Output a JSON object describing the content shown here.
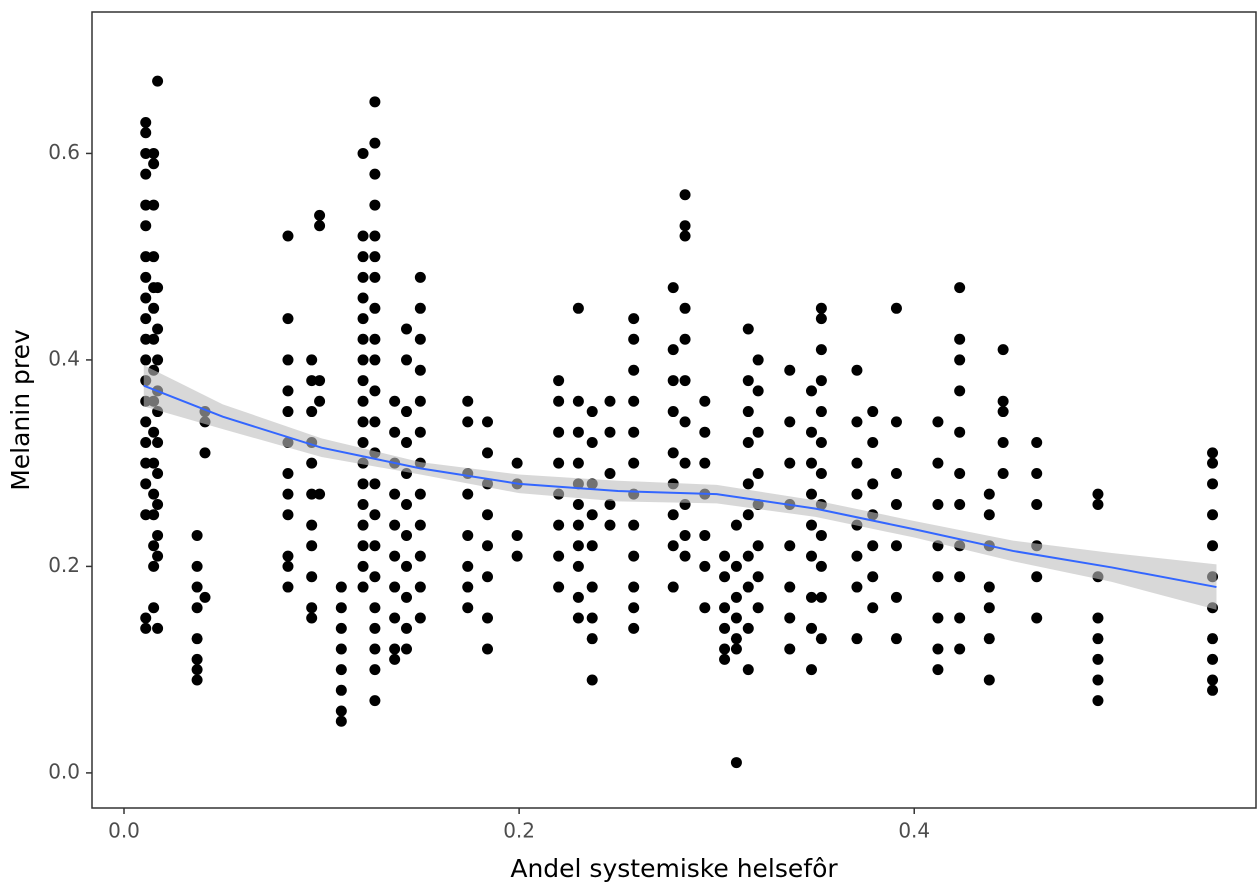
{
  "chart_data": {
    "type": "scatter",
    "x_label": "Andel systemiske helsefôr",
    "y_label": "Melanin prev",
    "xlim": [
      -0.0162,
      0.573
    ],
    "ylim": [
      -0.034,
      0.737
    ],
    "xticks": [
      {
        "value": 0,
        "label": "0.0"
      },
      0.2,
      0.4
    ],
    "yticks": [
      {
        "value": 0,
        "label": "0.0"
      },
      0.2,
      0.4,
      0.6
    ],
    "grid": false,
    "series": [
      {
        "color": "#000000",
        "x": [
          0.011,
          0.011,
          0.011,
          0.011,
          0.011,
          0.011,
          0.011,
          0.011,
          0.011,
          0.011,
          0.011,
          0.011,
          0.011,
          0.011,
          0.011,
          0.011,
          0.011,
          0.011,
          0.011,
          0.011,
          0.011,
          0.015,
          0.015,
          0.015,
          0.015,
          0.015,
          0.015,
          0.015,
          0.015,
          0.015,
          0.015,
          0.015,
          0.015,
          0.015,
          0.015,
          0.015,
          0.015,
          0.017,
          0.017,
          0.017,
          0.017,
          0.017,
          0.017,
          0.017,
          0.017,
          0.017,
          0.017,
          0.017,
          0.017,
          0.037,
          0.037,
          0.037,
          0.037,
          0.037,
          0.037,
          0.037,
          0.037,
          0.041,
          0.041,
          0.041,
          0.041,
          0.083,
          0.083,
          0.083,
          0.083,
          0.083,
          0.083,
          0.083,
          0.083,
          0.083,
          0.083,
          0.083,
          0.083,
          0.095,
          0.095,
          0.095,
          0.095,
          0.095,
          0.095,
          0.095,
          0.095,
          0.095,
          0.095,
          0.095,
          0.099,
          0.099,
          0.099,
          0.099,
          0.099,
          0.11,
          0.11,
          0.11,
          0.11,
          0.11,
          0.11,
          0.11,
          0.11,
          0.121,
          0.121,
          0.121,
          0.121,
          0.121,
          0.121,
          0.121,
          0.121,
          0.121,
          0.121,
          0.121,
          0.121,
          0.121,
          0.121,
          0.121,
          0.121,
          0.121,
          0.121,
          0.121,
          0.127,
          0.127,
          0.127,
          0.127,
          0.127,
          0.127,
          0.127,
          0.127,
          0.127,
          0.127,
          0.127,
          0.127,
          0.127,
          0.127,
          0.127,
          0.127,
          0.127,
          0.127,
          0.127,
          0.127,
          0.127,
          0.127,
          0.137,
          0.137,
          0.137,
          0.137,
          0.137,
          0.137,
          0.137,
          0.137,
          0.137,
          0.137,
          0.143,
          0.143,
          0.143,
          0.143,
          0.143,
          0.143,
          0.143,
          0.143,
          0.143,
          0.143,
          0.143,
          0.15,
          0.15,
          0.15,
          0.15,
          0.15,
          0.15,
          0.15,
          0.15,
          0.15,
          0.15,
          0.15,
          0.15,
          0.174,
          0.174,
          0.174,
          0.174,
          0.174,
          0.174,
          0.174,
          0.174,
          0.184,
          0.184,
          0.184,
          0.184,
          0.184,
          0.184,
          0.184,
          0.184,
          0.199,
          0.199,
          0.199,
          0.199,
          0.22,
          0.22,
          0.22,
          0.22,
          0.22,
          0.22,
          0.22,
          0.22,
          0.23,
          0.23,
          0.23,
          0.23,
          0.23,
          0.23,
          0.23,
          0.23,
          0.23,
          0.23,
          0.23,
          0.237,
          0.237,
          0.237,
          0.237,
          0.237,
          0.237,
          0.237,
          0.237,
          0.237,
          0.246,
          0.246,
          0.246,
          0.246,
          0.246,
          0.258,
          0.258,
          0.258,
          0.258,
          0.258,
          0.258,
          0.258,
          0.258,
          0.258,
          0.258,
          0.258,
          0.258,
          0.278,
          0.278,
          0.278,
          0.278,
          0.278,
          0.278,
          0.278,
          0.278,
          0.278,
          0.284,
          0.284,
          0.284,
          0.284,
          0.284,
          0.284,
          0.284,
          0.284,
          0.284,
          0.284,
          0.284,
          0.294,
          0.294,
          0.294,
          0.294,
          0.294,
          0.294,
          0.294,
          0.304,
          0.304,
          0.304,
          0.304,
          0.304,
          0.304,
          0.31,
          0.31,
          0.31,
          0.31,
          0.31,
          0.31,
          0.31,
          0.316,
          0.316,
          0.316,
          0.316,
          0.316,
          0.316,
          0.316,
          0.316,
          0.316,
          0.316,
          0.321,
          0.321,
          0.321,
          0.321,
          0.321,
          0.321,
          0.321,
          0.321,
          0.337,
          0.337,
          0.337,
          0.337,
          0.337,
          0.337,
          0.337,
          0.337,
          0.348,
          0.348,
          0.348,
          0.348,
          0.348,
          0.348,
          0.348,
          0.348,
          0.348,
          0.353,
          0.353,
          0.353,
          0.353,
          0.353,
          0.353,
          0.353,
          0.353,
          0.353,
          0.353,
          0.353,
          0.353,
          0.371,
          0.371,
          0.371,
          0.371,
          0.371,
          0.371,
          0.371,
          0.371,
          0.379,
          0.379,
          0.379,
          0.379,
          0.379,
          0.379,
          0.379,
          0.391,
          0.391,
          0.391,
          0.391,
          0.391,
          0.391,
          0.391,
          0.412,
          0.412,
          0.412,
          0.412,
          0.412,
          0.412,
          0.412,
          0.412,
          0.423,
          0.423,
          0.423,
          0.423,
          0.423,
          0.423,
          0.423,
          0.423,
          0.423,
          0.423,
          0.423,
          0.438,
          0.438,
          0.438,
          0.438,
          0.438,
          0.438,
          0.438,
          0.445,
          0.445,
          0.445,
          0.445,
          0.445,
          0.462,
          0.462,
          0.462,
          0.462,
          0.462,
          0.462,
          0.493,
          0.493,
          0.493,
          0.493,
          0.493,
          0.493,
          0.493,
          0.493,
          0.551,
          0.551,
          0.551,
          0.551,
          0.551,
          0.551,
          0.551,
          0.551,
          0.551,
          0.551,
          0.551
        ],
        "values": [
          0.63,
          0.62,
          0.6,
          0.58,
          0.55,
          0.53,
          0.5,
          0.48,
          0.46,
          0.44,
          0.42,
          0.4,
          0.38,
          0.36,
          0.34,
          0.32,
          0.3,
          0.28,
          0.25,
          0.15,
          0.14,
          0.6,
          0.59,
          0.55,
          0.5,
          0.47,
          0.45,
          0.42,
          0.39,
          0.36,
          0.33,
          0.3,
          0.27,
          0.25,
          0.22,
          0.2,
          0.16,
          0.67,
          0.47,
          0.43,
          0.4,
          0.37,
          0.35,
          0.32,
          0.29,
          0.26,
          0.23,
          0.21,
          0.14,
          0.23,
          0.2,
          0.18,
          0.16,
          0.13,
          0.11,
          0.1,
          0.09,
          0.35,
          0.34,
          0.31,
          0.17,
          0.52,
          0.44,
          0.4,
          0.37,
          0.35,
          0.32,
          0.29,
          0.27,
          0.25,
          0.21,
          0.2,
          0.18,
          0.4,
          0.38,
          0.35,
          0.32,
          0.3,
          0.27,
          0.24,
          0.22,
          0.19,
          0.16,
          0.15,
          0.54,
          0.53,
          0.38,
          0.36,
          0.27,
          0.18,
          0.16,
          0.14,
          0.12,
          0.1,
          0.08,
          0.06,
          0.05,
          0.6,
          0.52,
          0.5,
          0.48,
          0.46,
          0.44,
          0.42,
          0.4,
          0.38,
          0.36,
          0.34,
          0.32,
          0.3,
          0.28,
          0.26,
          0.24,
          0.22,
          0.2,
          0.18,
          0.65,
          0.61,
          0.58,
          0.55,
          0.52,
          0.5,
          0.48,
          0.45,
          0.42,
          0.4,
          0.37,
          0.34,
          0.31,
          0.28,
          0.25,
          0.22,
          0.19,
          0.16,
          0.14,
          0.12,
          0.1,
          0.07,
          0.36,
          0.33,
          0.3,
          0.27,
          0.24,
          0.21,
          0.18,
          0.15,
          0.12,
          0.11,
          0.43,
          0.4,
          0.35,
          0.32,
          0.29,
          0.26,
          0.23,
          0.2,
          0.17,
          0.14,
          0.12,
          0.48,
          0.45,
          0.42,
          0.39,
          0.36,
          0.33,
          0.3,
          0.27,
          0.24,
          0.21,
          0.18,
          0.15,
          0.36,
          0.34,
          0.29,
          0.27,
          0.23,
          0.2,
          0.18,
          0.16,
          0.34,
          0.31,
          0.28,
          0.25,
          0.22,
          0.19,
          0.15,
          0.12,
          0.3,
          0.28,
          0.23,
          0.21,
          0.38,
          0.36,
          0.33,
          0.3,
          0.27,
          0.24,
          0.21,
          0.18,
          0.45,
          0.36,
          0.33,
          0.3,
          0.28,
          0.26,
          0.24,
          0.22,
          0.2,
          0.17,
          0.15,
          0.35,
          0.32,
          0.28,
          0.25,
          0.22,
          0.18,
          0.15,
          0.13,
          0.09,
          0.36,
          0.33,
          0.29,
          0.26,
          0.24,
          0.44,
          0.42,
          0.39,
          0.36,
          0.33,
          0.3,
          0.27,
          0.24,
          0.21,
          0.18,
          0.16,
          0.14,
          0.47,
          0.41,
          0.38,
          0.35,
          0.31,
          0.28,
          0.25,
          0.22,
          0.18,
          0.56,
          0.53,
          0.52,
          0.45,
          0.42,
          0.38,
          0.34,
          0.3,
          0.26,
          0.23,
          0.21,
          0.36,
          0.33,
          0.3,
          0.27,
          0.23,
          0.2,
          0.16,
          0.21,
          0.19,
          0.16,
          0.14,
          0.12,
          0.11,
          0.24,
          0.2,
          0.17,
          0.15,
          0.13,
          0.12,
          0.01,
          0.43,
          0.38,
          0.35,
          0.32,
          0.28,
          0.25,
          0.21,
          0.18,
          0.14,
          0.1,
          0.4,
          0.37,
          0.33,
          0.29,
          0.26,
          0.22,
          0.19,
          0.16,
          0.39,
          0.34,
          0.3,
          0.26,
          0.22,
          0.18,
          0.15,
          0.12,
          0.37,
          0.33,
          0.3,
          0.27,
          0.24,
          0.21,
          0.17,
          0.14,
          0.1,
          0.45,
          0.44,
          0.41,
          0.38,
          0.35,
          0.32,
          0.29,
          0.26,
          0.23,
          0.2,
          0.17,
          0.13,
          0.39,
          0.34,
          0.3,
          0.27,
          0.24,
          0.21,
          0.18,
          0.13,
          0.35,
          0.32,
          0.28,
          0.25,
          0.22,
          0.19,
          0.16,
          0.45,
          0.34,
          0.29,
          0.26,
          0.22,
          0.17,
          0.13,
          0.34,
          0.3,
          0.26,
          0.22,
          0.19,
          0.15,
          0.12,
          0.1,
          0.47,
          0.42,
          0.4,
          0.37,
          0.33,
          0.29,
          0.26,
          0.22,
          0.19,
          0.15,
          0.12,
          0.27,
          0.25,
          0.22,
          0.18,
          0.16,
          0.13,
          0.09,
          0.41,
          0.36,
          0.35,
          0.32,
          0.29,
          0.32,
          0.29,
          0.26,
          0.22,
          0.19,
          0.15,
          0.27,
          0.26,
          0.19,
          0.15,
          0.13,
          0.11,
          0.09,
          0.07,
          0.31,
          0.3,
          0.28,
          0.25,
          0.22,
          0.19,
          0.16,
          0.13,
          0.11,
          0.09,
          0.08
        ]
      }
    ],
    "smooth": {
      "color": "#3366ff",
      "band_color": "#bebebe",
      "x": [
        0.01,
        0.05,
        0.1,
        0.15,
        0.2,
        0.25,
        0.3,
        0.35,
        0.4,
        0.45,
        0.5,
        0.553
      ],
      "values": [
        0.375,
        0.345,
        0.315,
        0.295,
        0.28,
        0.273,
        0.27,
        0.256,
        0.236,
        0.215,
        0.199,
        0.18
      ],
      "lower": [
        0.355,
        0.333,
        0.306,
        0.289,
        0.271,
        0.263,
        0.261,
        0.248,
        0.228,
        0.205,
        0.185,
        0.158
      ],
      "upper": [
        0.395,
        0.357,
        0.324,
        0.301,
        0.289,
        0.283,
        0.279,
        0.264,
        0.244,
        0.225,
        0.213,
        0.202
      ]
    }
  }
}
